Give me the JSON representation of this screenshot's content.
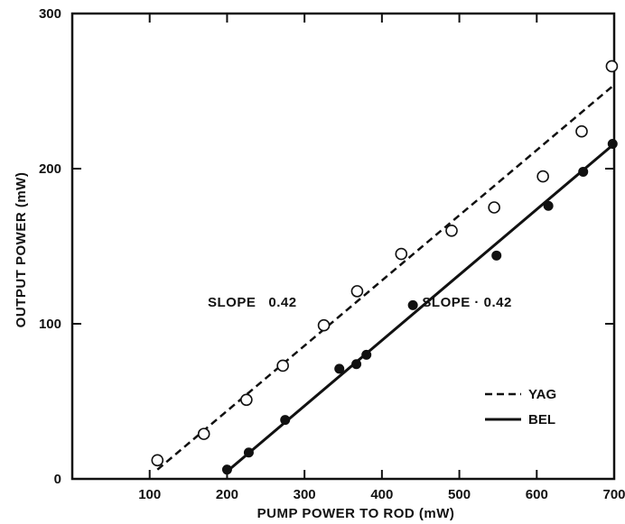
{
  "chart_data": {
    "type": "scatter",
    "title": "",
    "xlabel": "PUMP POWER TO ROD (mW)",
    "ylabel": "OUTPUT POWER (mW)",
    "xlim": [
      0,
      700
    ],
    "ylim": [
      0,
      300
    ],
    "xticks": [
      100,
      200,
      300,
      400,
      500,
      600,
      700
    ],
    "yticks": [
      0,
      100,
      200,
      300
    ],
    "grid": false,
    "legend_position": "bottom-right",
    "series": [
      {
        "name": "YAG",
        "marker": "open-circle",
        "line_style": "dashed",
        "points": [
          {
            "x": 110,
            "y": 12
          },
          {
            "x": 170,
            "y": 29
          },
          {
            "x": 225,
            "y": 51
          },
          {
            "x": 272,
            "y": 73
          },
          {
            "x": 325,
            "y": 99
          },
          {
            "x": 368,
            "y": 121
          },
          {
            "x": 425,
            "y": 145
          },
          {
            "x": 490,
            "y": 160
          },
          {
            "x": 545,
            "y": 175
          },
          {
            "x": 608,
            "y": 195
          },
          {
            "x": 658,
            "y": 224
          },
          {
            "x": 697,
            "y": 266
          }
        ],
        "fit_line": [
          {
            "x": 110,
            "y": 6
          },
          {
            "x": 700,
            "y": 254
          }
        ]
      },
      {
        "name": "BEL",
        "marker": "filled-circle",
        "line_style": "solid",
        "points": [
          {
            "x": 200,
            "y": 6
          },
          {
            "x": 228,
            "y": 17
          },
          {
            "x": 275,
            "y": 38
          },
          {
            "x": 345,
            "y": 71
          },
          {
            "x": 367,
            "y": 74
          },
          {
            "x": 380,
            "y": 80
          },
          {
            "x": 440,
            "y": 112
          },
          {
            "x": 548,
            "y": 144
          },
          {
            "x": 615,
            "y": 176
          },
          {
            "x": 660,
            "y": 198
          },
          {
            "x": 698,
            "y": 216
          }
        ],
        "fit_line": [
          {
            "x": 198,
            "y": 4
          },
          {
            "x": 700,
            "y": 216
          }
        ]
      }
    ],
    "annotations": [
      {
        "text": "SLOPE   0.42",
        "x": 175,
        "y": 111
      },
      {
        "text": "SLOPE · 0.42",
        "x": 452,
        "y": 111
      }
    ]
  }
}
